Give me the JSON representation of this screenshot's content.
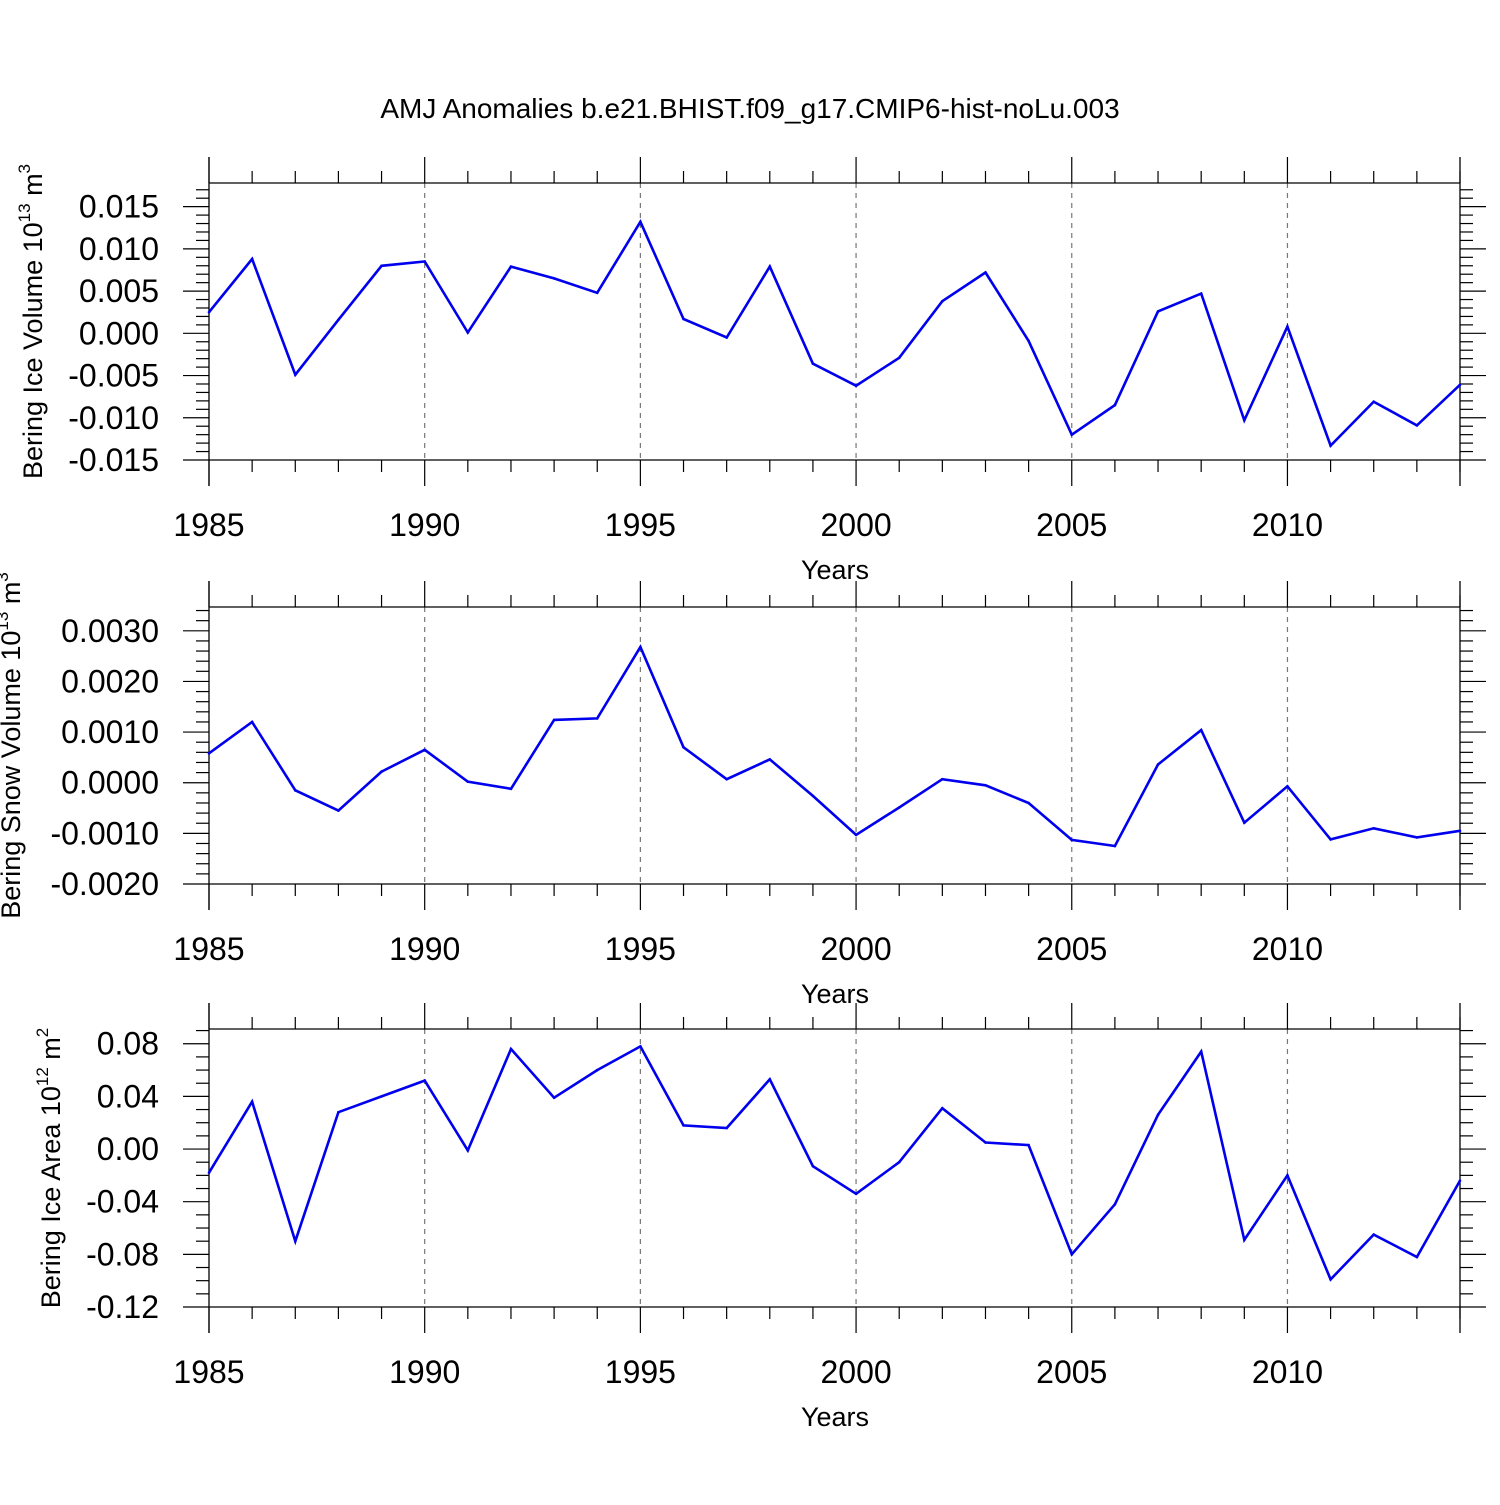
{
  "title": "AMJ Anomalies b.e21.BHIST.f09_g17.CMIP6-hist-noLu.003",
  "colors": {
    "line": "#0000ee",
    "frame": "#000000",
    "grid": "#777777"
  },
  "chart_data": [
    {
      "type": "line",
      "ylabel": "Bering Ice Volume 10",
      "ylabel_exp": "13",
      "ylabel_unit": " m",
      "ylabel_unit_exp": "3",
      "xlabel": "Years",
      "xlim": [
        1985,
        2014
      ],
      "ylim": [
        -0.015,
        0.0178
      ],
      "xticks": [
        1985,
        1990,
        1995,
        2000,
        2005,
        2010
      ],
      "yticks": [
        "0.015",
        "0.010",
        "0.005",
        "0.000",
        "-0.005",
        "-0.010",
        "-0.015"
      ],
      "ytick_values": [
        0.015,
        0.01,
        0.005,
        0.0,
        -0.005,
        -0.01,
        -0.015
      ],
      "yminor_step": 0.001,
      "x": [
        1985,
        1986,
        1987,
        1988,
        1989,
        1990,
        1991,
        1992,
        1993,
        1994,
        1995,
        1996,
        1997,
        1998,
        1999,
        2000,
        2001,
        2002,
        2003,
        2004,
        2005,
        2006,
        2007,
        2008,
        2009,
        2010,
        2011,
        2012,
        2013,
        2014
      ],
      "y": [
        0.0025,
        0.0088,
        -0.0049,
        0.0016,
        0.008,
        0.0085,
        0.0001,
        0.0079,
        0.0065,
        0.0048,
        0.0132,
        0.0017,
        -0.0005,
        0.0079,
        -0.0036,
        -0.0062,
        -0.0029,
        0.0038,
        0.0072,
        -0.0009,
        -0.012,
        -0.0085,
        0.0026,
        0.0047,
        -0.0103,
        0.0008,
        -0.0133,
        -0.0081,
        -0.0109,
        -0.0061
      ]
    },
    {
      "type": "line",
      "ylabel": "Bering Snow Volume 10",
      "ylabel_exp": "13",
      "ylabel_unit": " m",
      "ylabel_unit_exp": "3",
      "xlabel": "Years",
      "xlim": [
        1985,
        2014
      ],
      "ylim": [
        -0.002,
        0.00347
      ],
      "xticks": [
        1985,
        1990,
        1995,
        2000,
        2005,
        2010
      ],
      "yticks": [
        "0.0030",
        "0.0020",
        "0.0010",
        "0.0000",
        "-0.0010",
        "-0.0020"
      ],
      "ytick_values": [
        0.003,
        0.002,
        0.001,
        0.0,
        -0.001,
        -0.002
      ],
      "yminor_step": 0.0002,
      "x": [
        1985,
        1986,
        1987,
        1988,
        1989,
        1990,
        1991,
        1992,
        1993,
        1994,
        1995,
        1996,
        1997,
        1998,
        1999,
        2000,
        2001,
        2002,
        2003,
        2004,
        2005,
        2006,
        2007,
        2008,
        2009,
        2010,
        2011,
        2012,
        2013,
        2014
      ],
      "y": [
        0.00058,
        0.0012,
        -0.00015,
        -0.00055,
        0.00022,
        0.00065,
        2e-05,
        -0.00012,
        0.00124,
        0.00127,
        0.00268,
        0.0007,
        7e-05,
        0.00046,
        -0.00026,
        -0.00103,
        -0.00049,
        7e-05,
        -5e-05,
        -0.0004,
        -0.00113,
        -0.00125,
        0.00036,
        0.00104,
        -0.00079,
        -7e-05,
        -0.00112,
        -0.0009,
        -0.00108,
        -0.00095
      ]
    },
    {
      "type": "line",
      "ylabel": "Bering Ice Area 10",
      "ylabel_exp": "12",
      "ylabel_unit": " m",
      "ylabel_unit_exp": "2",
      "xlabel": "Years",
      "xlim": [
        1985,
        2014
      ],
      "ylim": [
        -0.12,
        0.0912
      ],
      "xticks": [
        1985,
        1990,
        1995,
        2000,
        2005,
        2010
      ],
      "yticks": [
        "0.08",
        "0.04",
        "0.00",
        "-0.04",
        "-0.08",
        "-0.12"
      ],
      "ytick_values": [
        0.08,
        0.04,
        0.0,
        -0.04,
        -0.08,
        -0.12
      ],
      "yminor_step": 0.01,
      "x": [
        1985,
        1986,
        1987,
        1988,
        1989,
        1990,
        1991,
        1992,
        1993,
        1994,
        1995,
        1996,
        1997,
        1998,
        1999,
        2000,
        2001,
        2002,
        2003,
        2004,
        2005,
        2006,
        2007,
        2008,
        2009,
        2010,
        2011,
        2012,
        2013,
        2014
      ],
      "y": [
        -0.018,
        0.036,
        -0.07,
        0.028,
        0.04,
        0.052,
        -0.001,
        0.076,
        0.039,
        0.06,
        0.078,
        0.018,
        0.016,
        0.053,
        -0.013,
        -0.034,
        -0.01,
        0.031,
        0.005,
        0.003,
        -0.08,
        -0.042,
        0.026,
        0.074,
        -0.069,
        -0.02,
        -0.099,
        -0.065,
        -0.082,
        -0.024
      ]
    }
  ]
}
